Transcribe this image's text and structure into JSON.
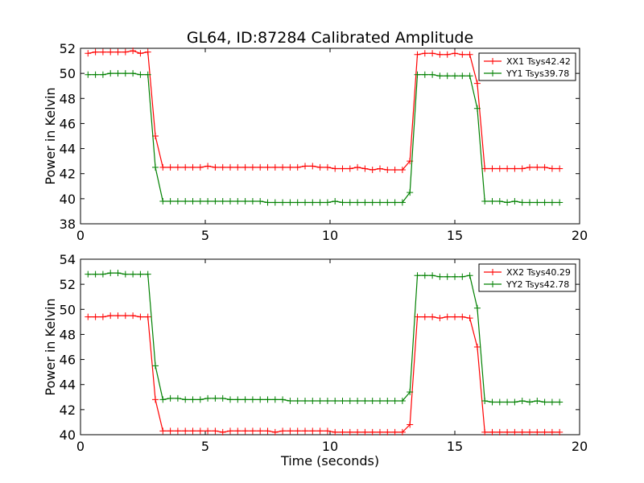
{
  "title": "GL64, ID:87284 Calibrated Amplitude",
  "chart_data": [
    {
      "type": "line",
      "title": "GL64, ID:87284 Calibrated Amplitude",
      "xlabel": "",
      "ylabel": "Power in Kelvin",
      "xlim": [
        0,
        20
      ],
      "ylim": [
        38,
        52
      ],
      "xticks": [
        "0",
        "5",
        "10",
        "15",
        "20"
      ],
      "yticks": [
        "38",
        "40",
        "42",
        "44",
        "46",
        "48",
        "50",
        "52"
      ],
      "grid": false,
      "legend_position": "top-right",
      "x": [
        0.3,
        0.6,
        0.9,
        1.2,
        1.5,
        1.8,
        2.1,
        2.4,
        2.7,
        3.0,
        3.3,
        3.6,
        3.9,
        4.2,
        4.5,
        4.8,
        5.1,
        5.4,
        5.7,
        6.0,
        6.3,
        6.6,
        6.9,
        7.2,
        7.5,
        7.8,
        8.1,
        8.4,
        8.7,
        9.0,
        9.3,
        9.6,
        9.9,
        10.2,
        10.5,
        10.8,
        11.1,
        11.4,
        11.7,
        12.0,
        12.3,
        12.6,
        12.9,
        13.2,
        13.5,
        13.8,
        14.1,
        14.4,
        14.7,
        15.0,
        15.3,
        15.6,
        15.9,
        16.2,
        16.5,
        16.8,
        17.1,
        17.4,
        17.7,
        18.0,
        18.3,
        18.6,
        18.9,
        19.2
      ],
      "series": [
        {
          "name": "XX1 Tsys42.42",
          "color": "#ff0000",
          "values": [
            51.6,
            51.7,
            51.7,
            51.7,
            51.7,
            51.7,
            51.8,
            51.6,
            51.7,
            45.0,
            42.5,
            42.5,
            42.5,
            42.5,
            42.5,
            42.5,
            42.6,
            42.5,
            42.5,
            42.5,
            42.5,
            42.5,
            42.5,
            42.5,
            42.5,
            42.5,
            42.5,
            42.5,
            42.5,
            42.6,
            42.6,
            42.5,
            42.5,
            42.4,
            42.4,
            42.4,
            42.5,
            42.4,
            42.3,
            42.4,
            42.3,
            42.3,
            42.3,
            43.0,
            51.5,
            51.6,
            51.6,
            51.5,
            51.5,
            51.6,
            51.5,
            51.5,
            49.2,
            42.4,
            42.4,
            42.4,
            42.4,
            42.4,
            42.4,
            42.5,
            42.5,
            42.5,
            42.4,
            42.4
          ]
        },
        {
          "name": "YY1 Tsys39.78",
          "color": "#008000",
          "values": [
            49.9,
            49.9,
            49.9,
            50.0,
            50.0,
            50.0,
            50.0,
            49.9,
            49.9,
            42.5,
            39.8,
            39.8,
            39.8,
            39.8,
            39.8,
            39.8,
            39.8,
            39.8,
            39.8,
            39.8,
            39.8,
            39.8,
            39.8,
            39.8,
            39.7,
            39.7,
            39.7,
            39.7,
            39.7,
            39.7,
            39.7,
            39.7,
            39.7,
            39.8,
            39.7,
            39.7,
            39.7,
            39.7,
            39.7,
            39.7,
            39.7,
            39.7,
            39.7,
            40.5,
            49.9,
            49.9,
            49.9,
            49.8,
            49.8,
            49.8,
            49.8,
            49.8,
            47.2,
            39.8,
            39.8,
            39.8,
            39.7,
            39.8,
            39.7,
            39.7,
            39.7,
            39.7,
            39.7,
            39.7
          ]
        }
      ]
    },
    {
      "type": "line",
      "title": "",
      "xlabel": "Time (seconds)",
      "ylabel": "Power in Kelvin",
      "xlim": [
        0,
        20
      ],
      "ylim": [
        40,
        54
      ],
      "xticks": [
        "0",
        "5",
        "10",
        "15",
        "20"
      ],
      "yticks": [
        "40",
        "42",
        "44",
        "46",
        "48",
        "50",
        "52",
        "54"
      ],
      "grid": false,
      "legend_position": "top-right",
      "x": [
        0.3,
        0.6,
        0.9,
        1.2,
        1.5,
        1.8,
        2.1,
        2.4,
        2.7,
        3.0,
        3.3,
        3.6,
        3.9,
        4.2,
        4.5,
        4.8,
        5.1,
        5.4,
        5.7,
        6.0,
        6.3,
        6.6,
        6.9,
        7.2,
        7.5,
        7.8,
        8.1,
        8.4,
        8.7,
        9.0,
        9.3,
        9.6,
        9.9,
        10.2,
        10.5,
        10.8,
        11.1,
        11.4,
        11.7,
        12.0,
        12.3,
        12.6,
        12.9,
        13.2,
        13.5,
        13.8,
        14.1,
        14.4,
        14.7,
        15.0,
        15.3,
        15.6,
        15.9,
        16.2,
        16.5,
        16.8,
        17.1,
        17.4,
        17.7,
        18.0,
        18.3,
        18.6,
        18.9,
        19.2
      ],
      "series": [
        {
          "name": "XX2 Tsys40.29",
          "color": "#ff0000",
          "values": [
            49.4,
            49.4,
            49.4,
            49.5,
            49.5,
            49.5,
            49.5,
            49.4,
            49.4,
            42.8,
            40.3,
            40.3,
            40.3,
            40.3,
            40.3,
            40.3,
            40.3,
            40.3,
            40.2,
            40.3,
            40.3,
            40.3,
            40.3,
            40.3,
            40.3,
            40.2,
            40.3,
            40.3,
            40.3,
            40.3,
            40.3,
            40.3,
            40.3,
            40.2,
            40.2,
            40.2,
            40.2,
            40.2,
            40.2,
            40.2,
            40.2,
            40.2,
            40.2,
            40.8,
            49.4,
            49.4,
            49.4,
            49.3,
            49.4,
            49.4,
            49.4,
            49.3,
            47.0,
            40.2,
            40.2,
            40.2,
            40.2,
            40.2,
            40.2,
            40.2,
            40.2,
            40.2,
            40.2,
            40.2
          ]
        },
        {
          "name": "YY2 Tsys42.78",
          "color": "#008000",
          "values": [
            52.8,
            52.8,
            52.8,
            52.9,
            52.9,
            52.8,
            52.8,
            52.8,
            52.8,
            45.5,
            42.8,
            42.9,
            42.9,
            42.8,
            42.8,
            42.8,
            42.9,
            42.9,
            42.9,
            42.8,
            42.8,
            42.8,
            42.8,
            42.8,
            42.8,
            42.8,
            42.8,
            42.7,
            42.7,
            42.7,
            42.7,
            42.7,
            42.7,
            42.7,
            42.7,
            42.7,
            42.7,
            42.7,
            42.7,
            42.7,
            42.7,
            42.7,
            42.7,
            43.4,
            52.7,
            52.7,
            52.7,
            52.6,
            52.6,
            52.6,
            52.6,
            52.7,
            50.1,
            42.7,
            42.6,
            42.6,
            42.6,
            42.6,
            42.7,
            42.6,
            42.7,
            42.6,
            42.6,
            42.6
          ]
        }
      ]
    }
  ]
}
